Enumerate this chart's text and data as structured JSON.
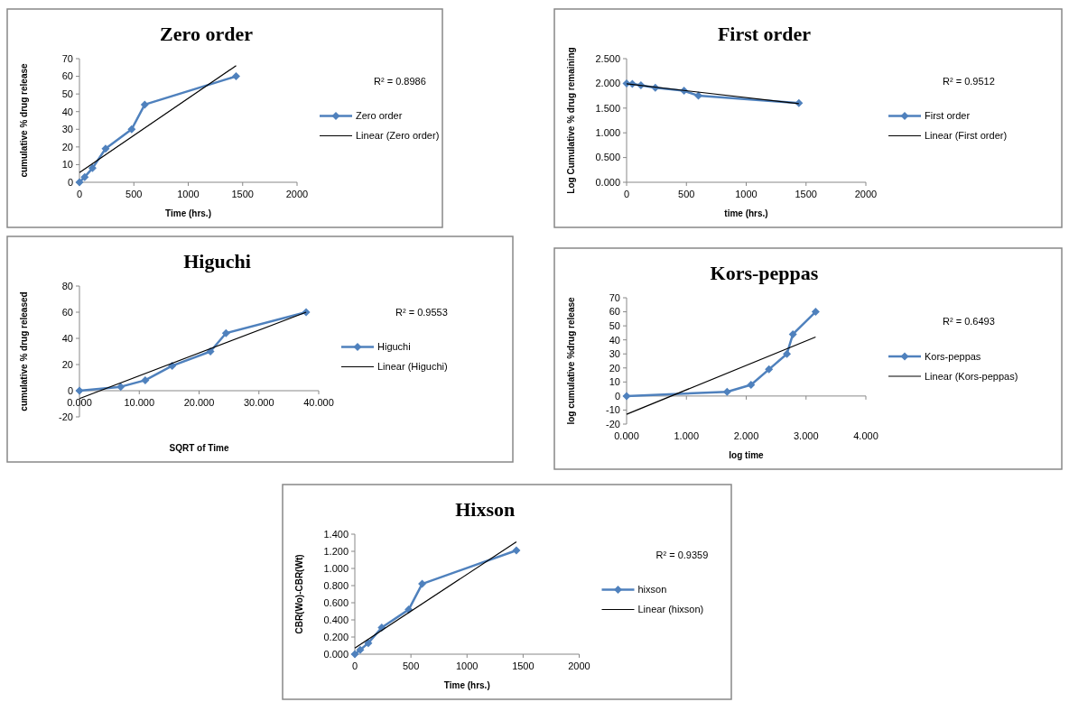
{
  "chart_data": [
    {
      "type": "line",
      "title": "Zero order",
      "xlabel": "Time (hrs.)",
      "ylabel": "cumulative % drug release",
      "xlim": [
        0,
        2000
      ],
      "xticks": [
        0,
        500,
        1000,
        1500,
        2000
      ],
      "ylim": [
        0,
        70
      ],
      "yticks": [
        0,
        10,
        20,
        30,
        40,
        50,
        60,
        70
      ],
      "legend": "right",
      "annotations": [
        "R² = 0.8986"
      ],
      "series": [
        {
          "name": "Zero order",
          "color": "#4f81bd",
          "marker": "diamond",
          "x": [
            0,
            48,
            120,
            240,
            480,
            600,
            1440
          ],
          "values": [
            0,
            3,
            8,
            19,
            30,
            44,
            60
          ]
        },
        {
          "name": "Linear (Zero order)",
          "color": "#000000",
          "marker": "none",
          "x": [
            0,
            1440
          ],
          "values": [
            5.5,
            66
          ]
        }
      ]
    },
    {
      "type": "line",
      "title": "First order",
      "xlabel": "time (hrs.)",
      "ylabel": "Log Cumulative % drug remaining",
      "xlim": [
        0,
        2000
      ],
      "xticks": [
        0,
        500,
        1000,
        1500,
        2000
      ],
      "ylim": [
        0,
        2.5
      ],
      "yticks": [
        {
          "value": 0,
          "label": "0.000"
        },
        {
          "value": 0.5,
          "label": "0.500"
        },
        {
          "value": 1,
          "label": "1.000"
        },
        {
          "value": 1.5,
          "label": "1.500"
        },
        {
          "value": 2,
          "label": "2.000"
        },
        {
          "value": 2.5,
          "label": "2.500"
        }
      ],
      "legend": "right",
      "annotations": [
        "R² = 0.9512"
      ],
      "series": [
        {
          "name": "First order",
          "color": "#4f81bd",
          "marker": "diamond",
          "x": [
            0,
            48,
            120,
            240,
            480,
            600,
            1440
          ],
          "values": [
            2.0,
            1.99,
            1.96,
            1.91,
            1.85,
            1.75,
            1.6
          ]
        },
        {
          "name": "Linear (First order)",
          "color": "#000000",
          "marker": "none",
          "x": [
            0,
            1440
          ],
          "values": [
            1.99,
            1.59
          ]
        }
      ]
    },
    {
      "type": "line",
      "title": "Higuchi",
      "xlabel": "SQRT of Time",
      "ylabel": "cumulative % drug released",
      "xlim": [
        0,
        40
      ],
      "xticks": [
        {
          "value": 0,
          "label": "0.000"
        },
        {
          "value": 10,
          "label": "10.000"
        },
        {
          "value": 20,
          "label": "20.000"
        },
        {
          "value": 30,
          "label": "30.000"
        },
        {
          "value": 40,
          "label": "40.000"
        }
      ],
      "ylim": [
        -20,
        80
      ],
      "yticks": [
        -20,
        0,
        20,
        40,
        60,
        80
      ],
      "legend": "right",
      "annotations": [
        "R² = 0.9553"
      ],
      "series": [
        {
          "name": "Higuchi",
          "color": "#4f81bd",
          "marker": "diamond",
          "x": [
            0,
            6.9,
            11,
            15.5,
            21.9,
            24.5,
            37.9
          ],
          "values": [
            0,
            3,
            8,
            19,
            30,
            44,
            60
          ]
        },
        {
          "name": "Linear (Higuchi)",
          "color": "#000000",
          "marker": "none",
          "x": [
            0,
            37.9
          ],
          "values": [
            -6,
            60
          ]
        }
      ]
    },
    {
      "type": "line",
      "title": "Kors-peppas",
      "xlabel": "log time",
      "ylabel": "log cumulative %drug release",
      "xlim": [
        0,
        4
      ],
      "xticks": [
        {
          "value": 0,
          "label": "0.000"
        },
        {
          "value": 1,
          "label": "1.000"
        },
        {
          "value": 2,
          "label": "2.000"
        },
        {
          "value": 3,
          "label": "3.000"
        },
        {
          "value": 4,
          "label": "4.000"
        }
      ],
      "ylim": [
        -20,
        70
      ],
      "yticks": [
        -20,
        -10,
        0,
        10,
        20,
        30,
        40,
        50,
        60,
        70
      ],
      "legend": "right",
      "annotations": [
        "R² = 0.6493"
      ],
      "series": [
        {
          "name": "Kors-peppas",
          "color": "#4f81bd",
          "marker": "diamond",
          "x": [
            0,
            1.68,
            2.08,
            2.38,
            2.68,
            2.78,
            3.16
          ],
          "values": [
            0,
            3,
            8,
            19,
            30,
            44,
            60
          ]
        },
        {
          "name": "Linear (Kors-peppas)",
          "color": "#000000",
          "marker": "none",
          "x": [
            0,
            3.16
          ],
          "values": [
            -13,
            42
          ]
        }
      ]
    },
    {
      "type": "line",
      "title": "Hixson",
      "xlabel": "Time (hrs.)",
      "ylabel": "CBR(Wo)-CBR(Wt)",
      "xlim": [
        0,
        2000
      ],
      "xticks": [
        0,
        500,
        1000,
        1500,
        2000
      ],
      "ylim": [
        0,
        1.4
      ],
      "yticks": [
        {
          "value": 0,
          "label": "0.000"
        },
        {
          "value": 0.2,
          "label": "0.200"
        },
        {
          "value": 0.4,
          "label": "0.400"
        },
        {
          "value": 0.6,
          "label": "0.600"
        },
        {
          "value": 0.8,
          "label": "0.800"
        },
        {
          "value": 1,
          "label": "1.000"
        },
        {
          "value": 1.2,
          "label": "1.200"
        },
        {
          "value": 1.4,
          "label": "1.400"
        }
      ],
      "legend": "right",
      "annotations": [
        "R² = 0.9359"
      ],
      "series": [
        {
          "name": "hixson",
          "color": "#4f81bd",
          "marker": "diamond",
          "x": [
            0,
            48,
            120,
            240,
            480,
            600,
            1440
          ],
          "values": [
            0,
            0.05,
            0.13,
            0.31,
            0.52,
            0.82,
            1.21
          ]
        },
        {
          "name": "Linear (hixson)",
          "color": "#000000",
          "marker": "none",
          "x": [
            0,
            1440
          ],
          "values": [
            0.07,
            1.31
          ]
        }
      ]
    }
  ]
}
